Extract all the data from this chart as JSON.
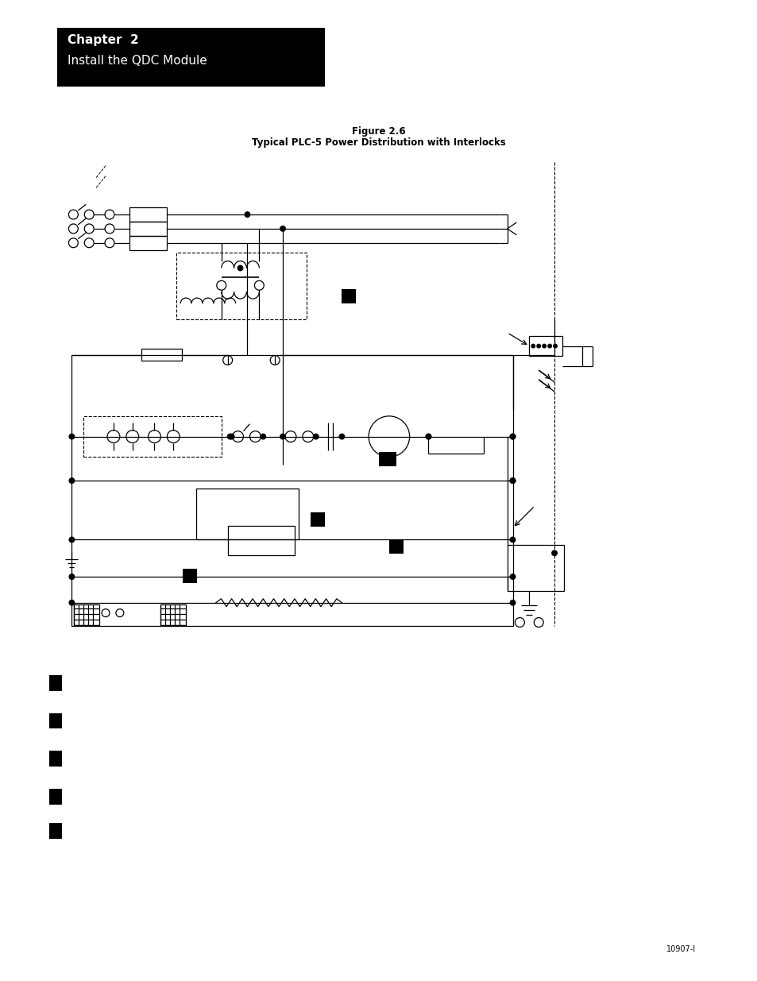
{
  "title_line1": "Figure 2.6",
  "title_line2": "Typical PLC-5 Power Distribution with Interlocks",
  "chapter_title": "Chapter  2",
  "chapter_subtitle": "Install the QDC Module",
  "footer_text": "10907-I",
  "background_color": "#ffffff",
  "header_bg_color": "#000000",
  "header_text_color": "#ffffff",
  "diagram_color": "#000000"
}
